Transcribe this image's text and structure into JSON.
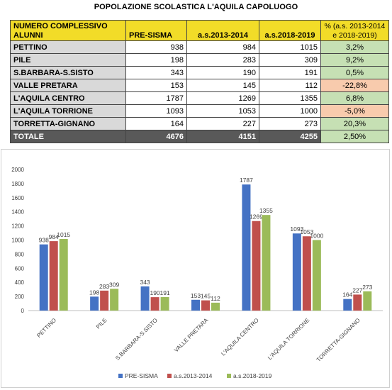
{
  "title": "POPOLAZIONE SCOLASTICA L'AQUILA CAPOLUOGO",
  "table": {
    "headers": {
      "name": "NUMERO COMPLESSIVO ALUNNI",
      "presisma": "PRE-SISMA",
      "as2013": "a.s.2013-2014",
      "as2018": "a.s.2018-2019",
      "pct": "% (a.s. 2013-2014 e 2018-2019)"
    },
    "rows": [
      {
        "name": "PETTINO",
        "presisma": "938",
        "as2013": "984",
        "as2018": "1015",
        "pct": "3,2%",
        "sign": "pos"
      },
      {
        "name": "PILE",
        "presisma": "198",
        "as2013": "283",
        "as2018": "309",
        "pct": "9,2%",
        "sign": "pos"
      },
      {
        "name": "S.BARBARA-S.SISTO",
        "presisma": "343",
        "as2013": "190",
        "as2018": "191",
        "pct": "0,5%",
        "sign": "pos"
      },
      {
        "name": "VALLE PRETARA",
        "presisma": "153",
        "as2013": "145",
        "as2018": "112",
        "pct": "-22,8%",
        "sign": "neg"
      },
      {
        "name": "L'AQUILA CENTRO",
        "presisma": "1787",
        "as2013": "1269",
        "as2018": "1355",
        "pct": "6,8%",
        "sign": "pos"
      },
      {
        "name": "L'AQUILA TORRIONE",
        "presisma": "1093",
        "as2013": "1053",
        "as2018": "1000",
        "pct": "-5,0%",
        "sign": "neg"
      },
      {
        "name": "TORRETTA-GIGNANO",
        "presisma": "164",
        "as2013": "227",
        "as2018": "273",
        "pct": "20,3%",
        "sign": "pos"
      }
    ],
    "total": {
      "name": "TOTALE",
      "presisma": "4676",
      "as2013": "4151",
      "as2018": "4255",
      "pct": "2,50%"
    }
  },
  "colors": {
    "header_bg": "#f2dc28",
    "positive": "#c6e0b4",
    "negative": "#f8cbad",
    "total_bg": "#595959"
  },
  "chart_data": {
    "type": "bar",
    "categories": [
      "PETTINO",
      "PILE",
      "S.BARBARA-S.SISTO",
      "VALLE PRETARA",
      "L'AQUILA CENTRO",
      "L'AQUILA TORRIONE",
      "TORRETTA-GIGNANO"
    ],
    "series": [
      {
        "name": "PRE-SISMA",
        "color": "#4472c4",
        "values": [
          938,
          198,
          343,
          153,
          1787,
          1093,
          164
        ]
      },
      {
        "name": "a.s.2013-2014",
        "color": "#c0504d",
        "values": [
          984,
          283,
          190,
          145,
          1269,
          1053,
          227
        ]
      },
      {
        "name": "a.s.2018-2019",
        "color": "#9bbb59",
        "values": [
          1015,
          309,
          191,
          112,
          1355,
          1000,
          273
        ]
      }
    ],
    "yticks": [
      0,
      200,
      400,
      600,
      800,
      1000,
      1200,
      1400,
      1600,
      1800,
      2000
    ],
    "ylim": [
      0,
      2000
    ],
    "grid": false,
    "legend": "bottom",
    "data_labels": true
  }
}
